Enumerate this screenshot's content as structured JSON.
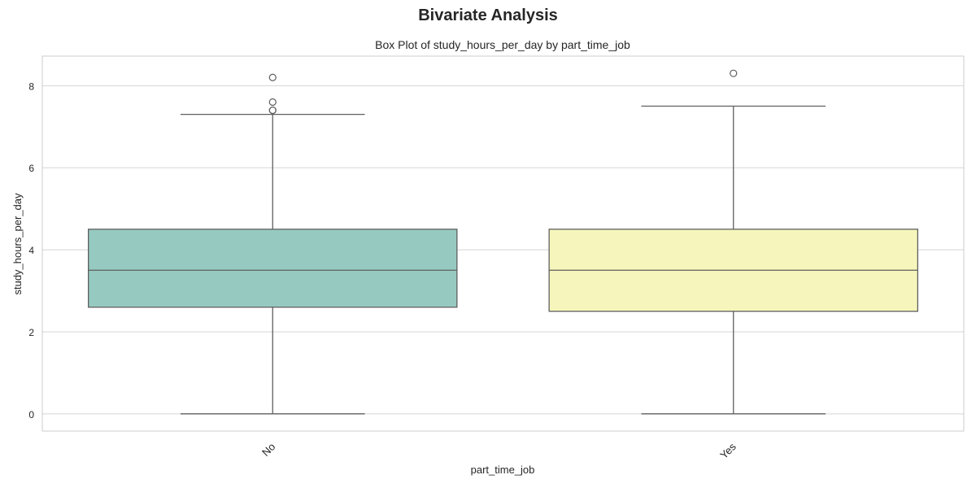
{
  "figure": {
    "suptitle": "Bivariate Analysis"
  },
  "chart_data": {
    "type": "box",
    "title": "Box Plot of study_hours_per_day by part_time_job",
    "xlabel": "part_time_job",
    "ylabel": "study_hours_per_day",
    "ylim": [
      -0.42,
      8.72
    ],
    "yticks": [
      0,
      2,
      4,
      6,
      8
    ],
    "ytick_labels": [
      "0",
      "2",
      "4",
      "6",
      "8"
    ],
    "grid": true,
    "categories": [
      "No",
      "Yes"
    ],
    "boxes": [
      {
        "category": "No",
        "whisker_low": 0,
        "q1": 2.6,
        "median": 3.5,
        "q3": 4.5,
        "whisker_high": 7.3,
        "outliers": [
          7.4,
          7.4,
          7.6,
          8.2
        ],
        "color": "#96cac1"
      },
      {
        "category": "Yes",
        "whisker_low": 0,
        "q1": 2.5,
        "median": 3.5,
        "q3": 4.5,
        "whisker_high": 7.5,
        "outliers": [
          8.3
        ],
        "color": "#f6f6bc"
      }
    ]
  }
}
